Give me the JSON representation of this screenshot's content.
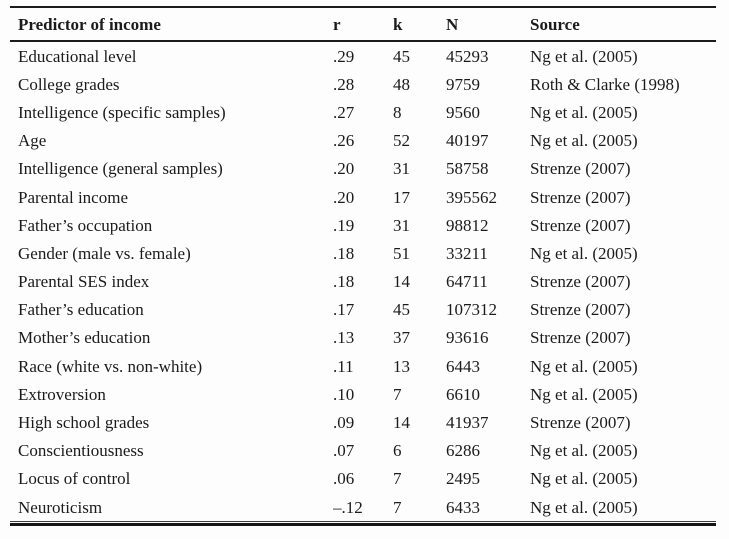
{
  "table": {
    "columns": [
      "Predictor of income",
      "r",
      "k",
      "N",
      "Source"
    ],
    "rows": [
      [
        "Educational level",
        ".29",
        "45",
        "45293",
        "Ng et al. (2005)"
      ],
      [
        "College grades",
        ".28",
        "48",
        "9759",
        "Roth & Clarke (1998)"
      ],
      [
        "Intelligence (specific samples)",
        ".27",
        "8",
        "9560",
        "Ng et al. (2005)"
      ],
      [
        "Age",
        ".26",
        "52",
        "40197",
        "Ng et al. (2005)"
      ],
      [
        "Intelligence (general samples)",
        ".20",
        "31",
        "58758",
        "Strenze (2007)"
      ],
      [
        "Parental income",
        ".20",
        "17",
        "395562",
        "Strenze (2007)"
      ],
      [
        "Father’s occupation",
        ".19",
        "31",
        "98812",
        "Strenze (2007)"
      ],
      [
        "Gender (male vs. female)",
        ".18",
        "51",
        "33211",
        "Ng et al. (2005)"
      ],
      [
        "Parental SES index",
        ".18",
        "14",
        "64711",
        "Strenze (2007)"
      ],
      [
        "Father’s education",
        ".17",
        "45",
        "107312",
        "Strenze (2007)"
      ],
      [
        "Mother’s education",
        ".13",
        "37",
        "93616",
        "Strenze (2007)"
      ],
      [
        "Race (white vs. non-white)",
        ".11",
        "13",
        "6443",
        "Ng et al. (2005)"
      ],
      [
        "Extroversion",
        ".10",
        "7",
        "6610",
        "Ng et al. (2005)"
      ],
      [
        "High school grades",
        ".09",
        "14",
        "41937",
        "Strenze (2007)"
      ],
      [
        "Conscientiousness",
        ".07",
        "6",
        "6286",
        "Ng et al. (2005)"
      ],
      [
        "Locus of control",
        ".06",
        "7",
        "2495",
        "Ng et al. (2005)"
      ],
      [
        "Neuroticism",
        "–.12",
        "7",
        "6433",
        "Ng et al. (2005)"
      ]
    ],
    "line_color": "#1c1c1c"
  }
}
